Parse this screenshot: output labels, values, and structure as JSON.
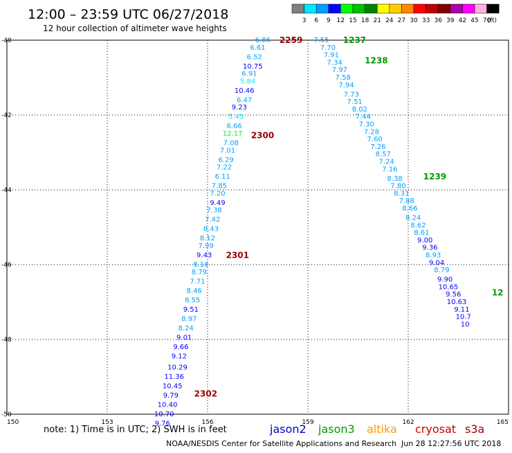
{
  "header": {
    "title": "12:00 – 23:59 UTC 06/27/2018",
    "subtitle": "12 hour collection of altimeter wave heights"
  },
  "legend": {
    "unit": "(ft)",
    "bins": [
      {
        "label": "3",
        "color": "#808080"
      },
      {
        "label": "6",
        "color": "#00e8ff"
      },
      {
        "label": "9",
        "color": "#00a0ff"
      },
      {
        "label": "12",
        "color": "#0000ff"
      },
      {
        "label": "15",
        "color": "#00ff00"
      },
      {
        "label": "18",
        "color": "#00c000"
      },
      {
        "label": "21",
        "color": "#008000"
      },
      {
        "label": "24",
        "color": "#ffff00"
      },
      {
        "label": "27",
        "color": "#ffcc00"
      },
      {
        "label": "30",
        "color": "#ff8800"
      },
      {
        "label": "33",
        "color": "#ff0000"
      },
      {
        "label": "36",
        "color": "#c00000"
      },
      {
        "label": "39",
        "color": "#800000"
      },
      {
        "label": "42",
        "color": "#aa00aa"
      },
      {
        "label": "45",
        "color": "#ff00ff"
      },
      {
        "label": "70",
        "color": "#ffb0e0"
      },
      {
        "label": "",
        "color": "#000000"
      }
    ]
  },
  "footer": {
    "note": "note: 1) Time is in UTC; 2) SWH is in feet",
    "satellites": [
      {
        "label": "jason2",
        "color": "#0000cc"
      },
      {
        "label": "jason3",
        "color": "#009900"
      },
      {
        "label": "altika",
        "color": "#ff9900"
      },
      {
        "label": "cryosat",
        "color": "#cc0000"
      },
      {
        "label": "s3a",
        "color": "#990000"
      }
    ],
    "credit": "NOAA/NESDIS Center for Satellite Applications and Research",
    "timestamp": "Jun 28 12:27:56 UTC 2018"
  },
  "chart_data": {
    "type": "scatter",
    "xlim": [
      150,
      165
    ],
    "ylim": [
      -40,
      -50
    ],
    "x_ticks": [
      "150",
      "153",
      "156",
      "159",
      "162",
      "165"
    ],
    "y_ticks": [
      "-40",
      "-42",
      "-44",
      "-46",
      "-48",
      "-50"
    ],
    "grid": true,
    "points": [
      {
        "lon": 157.65,
        "lat": -40.0,
        "label": "6.86",
        "color": "#00a0ff"
      },
      {
        "lon": 157.5,
        "lat": -40.2,
        "label": "6.61",
        "color": "#00a0ff"
      },
      {
        "lon": 157.4,
        "lat": -40.45,
        "label": "6.52",
        "color": "#00a0ff"
      },
      {
        "lon": 157.35,
        "lat": -40.7,
        "label": "10.75",
        "color": "#0000ff"
      },
      {
        "lon": 157.25,
        "lat": -40.9,
        "label": "6.91",
        "color": "#00a0ff"
      },
      {
        "lon": 157.2,
        "lat": -41.1,
        "label": "5.84",
        "color": "#00e8ff"
      },
      {
        "lon": 157.1,
        "lat": -41.35,
        "label": "10.46",
        "color": "#0000ff"
      },
      {
        "lon": 157.1,
        "lat": -41.6,
        "label": "6.47",
        "color": "#00a0ff"
      },
      {
        "lon": 156.95,
        "lat": -41.8,
        "label": "9.23",
        "color": "#0000ff"
      },
      {
        "lon": 156.85,
        "lat": -42.05,
        "label": "5.45",
        "color": "#00e8ff"
      },
      {
        "lon": 156.8,
        "lat": -42.3,
        "label": "6.66",
        "color": "#00a0ff"
      },
      {
        "lon": 156.75,
        "lat": -42.5,
        "label": "12.17",
        "color": "#00ff00"
      },
      {
        "lon": 156.7,
        "lat": -42.75,
        "label": "7.08",
        "color": "#00a0ff"
      },
      {
        "lon": 156.6,
        "lat": -42.95,
        "label": "7.01",
        "color": "#00a0ff"
      },
      {
        "lon": 156.55,
        "lat": -43.2,
        "label": "6.29",
        "color": "#00a0ff"
      },
      {
        "lon": 156.5,
        "lat": -43.4,
        "label": "7.22",
        "color": "#00a0ff"
      },
      {
        "lon": 156.45,
        "lat": -43.65,
        "label": "6.11",
        "color": "#00a0ff"
      },
      {
        "lon": 156.35,
        "lat": -43.9,
        "label": "7.85",
        "color": "#00a0ff"
      },
      {
        "lon": 156.3,
        "lat": -44.1,
        "label": "7.20",
        "color": "#00a0ff"
      },
      {
        "lon": 156.3,
        "lat": -44.35,
        "label": "9.49",
        "color": "#0000ff"
      },
      {
        "lon": 156.2,
        "lat": -44.55,
        "label": "7.38",
        "color": "#00a0ff"
      },
      {
        "lon": 156.15,
        "lat": -44.8,
        "label": "7.42",
        "color": "#00a0ff"
      },
      {
        "lon": 156.1,
        "lat": -45.05,
        "label": "8.43",
        "color": "#00a0ff"
      },
      {
        "lon": 156.0,
        "lat": -45.3,
        "label": "8.12",
        "color": "#00a0ff"
      },
      {
        "lon": 155.95,
        "lat": -45.5,
        "label": "7.99",
        "color": "#00a0ff"
      },
      {
        "lon": 155.9,
        "lat": -45.75,
        "label": "9.43",
        "color": "#0000ff"
      },
      {
        "lon": 155.8,
        "lat": -46.0,
        "label": "8.18",
        "color": "#00a0ff"
      },
      {
        "lon": 155.75,
        "lat": -46.2,
        "label": "8.79",
        "color": "#00a0ff"
      },
      {
        "lon": 155.7,
        "lat": -46.45,
        "label": "7.71",
        "color": "#00a0ff"
      },
      {
        "lon": 155.6,
        "lat": -46.7,
        "label": "8.46",
        "color": "#00a0ff"
      },
      {
        "lon": 155.55,
        "lat": -46.95,
        "label": "8.55",
        "color": "#00a0ff"
      },
      {
        "lon": 155.5,
        "lat": -47.2,
        "label": "9.51",
        "color": "#0000ff"
      },
      {
        "lon": 155.45,
        "lat": -47.45,
        "label": "8.97",
        "color": "#00a0ff"
      },
      {
        "lon": 155.35,
        "lat": -47.7,
        "label": "8.24",
        "color": "#00a0ff"
      },
      {
        "lon": 155.3,
        "lat": -47.95,
        "label": "9.01",
        "color": "#0000ff"
      },
      {
        "lon": 155.2,
        "lat": -48.2,
        "label": "9.66",
        "color": "#0000ff"
      },
      {
        "lon": 155.15,
        "lat": -48.45,
        "label": "9.12",
        "color": "#0000ff"
      },
      {
        "lon": 155.1,
        "lat": -48.75,
        "label": "10.29",
        "color": "#0000ff"
      },
      {
        "lon": 155.0,
        "lat": -49.0,
        "label": "11.36",
        "color": "#0000ff"
      },
      {
        "lon": 154.95,
        "lat": -49.25,
        "label": "10.45",
        "color": "#0000ff"
      },
      {
        "lon": 154.9,
        "lat": -49.5,
        "label": "9.79",
        "color": "#0000ff"
      },
      {
        "lon": 154.8,
        "lat": -49.75,
        "label": "10.40",
        "color": "#0000ff"
      },
      {
        "lon": 154.7,
        "lat": -50.0,
        "label": "10.70",
        "color": "#0000ff"
      },
      {
        "lon": 154.65,
        "lat": -50.25,
        "label": "9.76",
        "color": "#0000ff"
      },
      {
        "lon": 159.4,
        "lat": -40.0,
        "label": "7.55",
        "color": "#00a0ff"
      },
      {
        "lon": 159.6,
        "lat": -40.2,
        "label": "7.70",
        "color": "#00a0ff"
      },
      {
        "lon": 159.7,
        "lat": -40.4,
        "label": "7.91",
        "color": "#00a0ff"
      },
      {
        "lon": 159.8,
        "lat": -40.6,
        "label": "7.34",
        "color": "#00a0ff"
      },
      {
        "lon": 159.95,
        "lat": -40.8,
        "label": "7.97",
        "color": "#00a0ff"
      },
      {
        "lon": 160.05,
        "lat": -41.0,
        "label": "7.58",
        "color": "#00a0ff"
      },
      {
        "lon": 160.15,
        "lat": -41.2,
        "label": "7.94",
        "color": "#00a0ff"
      },
      {
        "lon": 160.3,
        "lat": -41.45,
        "label": "7.73",
        "color": "#00a0ff"
      },
      {
        "lon": 160.4,
        "lat": -41.65,
        "label": "7.51",
        "color": "#00a0ff"
      },
      {
        "lon": 160.55,
        "lat": -41.85,
        "label": "8.02",
        "color": "#00a0ff"
      },
      {
        "lon": 160.65,
        "lat": -42.05,
        "label": "7.44",
        "color": "#00a0ff"
      },
      {
        "lon": 160.75,
        "lat": -42.25,
        "label": "7.30",
        "color": "#00a0ff"
      },
      {
        "lon": 160.9,
        "lat": -42.45,
        "label": "7.28",
        "color": "#00a0ff"
      },
      {
        "lon": 161.0,
        "lat": -42.65,
        "label": "7.60",
        "color": "#00a0ff"
      },
      {
        "lon": 161.1,
        "lat": -42.85,
        "label": "7.26",
        "color": "#00a0ff"
      },
      {
        "lon": 161.25,
        "lat": -43.05,
        "label": "8.57",
        "color": "#00a0ff"
      },
      {
        "lon": 161.35,
        "lat": -43.25,
        "label": "7.24",
        "color": "#00a0ff"
      },
      {
        "lon": 161.45,
        "lat": -43.45,
        "label": "7.16",
        "color": "#00a0ff"
      },
      {
        "lon": 161.6,
        "lat": -43.7,
        "label": "8.38",
        "color": "#00a0ff"
      },
      {
        "lon": 161.7,
        "lat": -43.9,
        "label": "7.80",
        "color": "#00a0ff"
      },
      {
        "lon": 161.8,
        "lat": -44.1,
        "label": "8.31",
        "color": "#00a0ff"
      },
      {
        "lon": 161.95,
        "lat": -44.3,
        "label": "7.88",
        "color": "#00a0ff"
      },
      {
        "lon": 162.05,
        "lat": -44.5,
        "label": "8.66",
        "color": "#00a0ff"
      },
      {
        "lon": 162.15,
        "lat": -44.75,
        "label": "8.24",
        "color": "#00a0ff"
      },
      {
        "lon": 162.3,
        "lat": -44.95,
        "label": "8.62",
        "color": "#00a0ff"
      },
      {
        "lon": 162.4,
        "lat": -45.15,
        "label": "8.61",
        "color": "#00a0ff"
      },
      {
        "lon": 162.5,
        "lat": -45.35,
        "label": "9.00",
        "color": "#0000ff"
      },
      {
        "lon": 162.65,
        "lat": -45.55,
        "label": "9.36",
        "color": "#0000ff"
      },
      {
        "lon": 162.75,
        "lat": -45.75,
        "label": "8.93",
        "color": "#00a0ff"
      },
      {
        "lon": 162.85,
        "lat": -45.95,
        "label": "9.04",
        "color": "#0000ff"
      },
      {
        "lon": 163.0,
        "lat": -46.15,
        "label": "8.79",
        "color": "#00a0ff"
      },
      {
        "lon": 163.1,
        "lat": -46.4,
        "label": "9.90",
        "color": "#0000ff"
      },
      {
        "lon": 163.2,
        "lat": -46.6,
        "label": "10.65",
        "color": "#0000ff"
      },
      {
        "lon": 163.35,
        "lat": -46.8,
        "label": "9.56",
        "color": "#0000ff"
      },
      {
        "lon": 163.45,
        "lat": -47.0,
        "label": "10.63",
        "color": "#0000ff"
      },
      {
        "lon": 163.6,
        "lat": -47.2,
        "label": "9.11",
        "color": "#0000ff"
      },
      {
        "lon": 163.65,
        "lat": -47.4,
        "label": "10.7",
        "color": "#0000ff"
      },
      {
        "lon": 163.7,
        "lat": -47.6,
        "label": "10",
        "color": "#0000ff"
      }
    ],
    "time_labels": [
      {
        "lon": 158.15,
        "lat": -40.0,
        "label": "2259",
        "color": "#990000"
      },
      {
        "lon": 157.3,
        "lat": -42.55,
        "label": "2300",
        "color": "#990000"
      },
      {
        "lon": 156.55,
        "lat": -45.75,
        "label": "2301",
        "color": "#990000"
      },
      {
        "lon": 155.6,
        "lat": -49.45,
        "label": "2302",
        "color": "#990000"
      },
      {
        "lon": 160.05,
        "lat": -40.0,
        "label": "1237",
        "color": "#009900"
      },
      {
        "lon": 160.7,
        "lat": -40.55,
        "label": "1238",
        "color": "#009900"
      },
      {
        "lon": 162.45,
        "lat": -43.65,
        "label": "1239",
        "color": "#009900"
      },
      {
        "lon": 164.5,
        "lat": -46.75,
        "label": "12",
        "color": "#009900"
      }
    ]
  }
}
